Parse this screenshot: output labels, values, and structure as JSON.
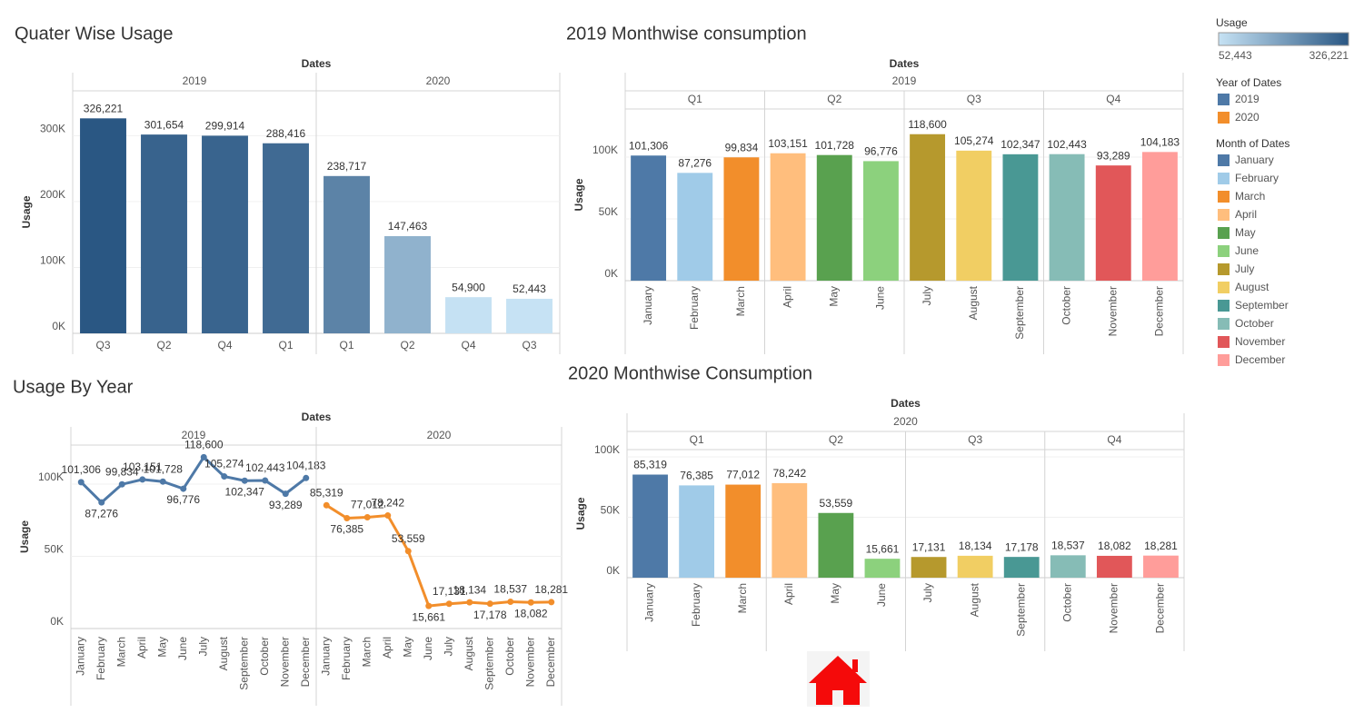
{
  "chart_data": [
    {
      "type": "bar",
      "title": "Quater Wise Usage",
      "x_label": "Dates",
      "y_label": "Usage",
      "color_by": "usage",
      "groups": [
        {
          "name": "2019",
          "categories": [
            "Q3",
            "Q2",
            "Q4",
            "Q1"
          ],
          "values": [
            326221,
            301654,
            299914,
            288416
          ],
          "value_labels": [
            "326,221",
            "301,654",
            "299,914",
            "288,416"
          ]
        },
        {
          "name": "2020",
          "categories": [
            "Q1",
            "Q2",
            "Q4",
            "Q3"
          ],
          "values": [
            238717,
            147463,
            54900,
            52443
          ],
          "value_labels": [
            "238,717",
            "147,463",
            "54,900",
            "52,443"
          ]
        }
      ],
      "ylim": [
        0,
        368000
      ],
      "yticks": [
        {
          "value": 0,
          "label": "0K"
        },
        {
          "value": 100000,
          "label": "100K"
        },
        {
          "value": 200000,
          "label": "200K"
        },
        {
          "value": 300000,
          "label": "300K"
        }
      ],
      "grid": true
    },
    {
      "type": "line",
      "title": "Usage By Year",
      "x_label": "Dates",
      "y_label": "Usage",
      "color_by": "year",
      "groups": [
        {
          "name": "2019",
          "categories": [
            "January",
            "February",
            "March",
            "April",
            "May",
            "June",
            "July",
            "August",
            "September",
            "October",
            "November",
            "December"
          ],
          "values": [
            101306,
            87276,
            99834,
            103151,
            101728,
            96776,
            118600,
            105274,
            102347,
            102443,
            93289,
            104183
          ],
          "value_labels": [
            "101,306",
            "87,276",
            "99,834",
            "103,151",
            "101,728",
            "96,776",
            "118,600",
            "105,274",
            "102,347",
            "102,443",
            "93,289",
            "104,183"
          ]
        },
        {
          "name": "2020",
          "categories": [
            "January",
            "February",
            "March",
            "April",
            "May",
            "June",
            "July",
            "August",
            "September",
            "October",
            "November",
            "December"
          ],
          "values": [
            85319,
            76385,
            77012,
            78242,
            53559,
            15661,
            17131,
            18134,
            17178,
            18537,
            18082,
            18281
          ],
          "value_labels": [
            "85,319",
            "76,385",
            "77,012",
            "78,242",
            "53,559",
            "15,661",
            "17,131",
            "18,134",
            "17,178",
            "18,537",
            "18,082",
            "18,281"
          ]
        }
      ],
      "ylim": [
        0,
        127000
      ],
      "yticks": [
        {
          "value": 0,
          "label": "0K"
        },
        {
          "value": 50000,
          "label": "50K"
        },
        {
          "value": 100000,
          "label": "100K"
        }
      ],
      "grid": true
    },
    {
      "type": "bar",
      "title": "2019 Monthwise consumption",
      "x_label": "Dates",
      "y_label": "Usage",
      "header": "2019",
      "color_by": "month",
      "groups": [
        {
          "name": "Q1",
          "categories": [
            "January",
            "February",
            "March"
          ],
          "values": [
            101306,
            87276,
            99834
          ],
          "value_labels": [
            "101,306",
            "87,276",
            "99,834"
          ]
        },
        {
          "name": "Q2",
          "categories": [
            "April",
            "May",
            "June"
          ],
          "values": [
            103151,
            101728,
            96776
          ],
          "value_labels": [
            "103,151",
            "101,728",
            "96,776"
          ]
        },
        {
          "name": "Q3",
          "categories": [
            "July",
            "August",
            "September"
          ],
          "values": [
            118600,
            105274,
            102347
          ],
          "value_labels": [
            "118,600",
            "105,274",
            "102,347"
          ]
        },
        {
          "name": "Q4",
          "categories": [
            "October",
            "November",
            "December"
          ],
          "values": [
            102443,
            93289,
            104183
          ],
          "value_labels": [
            "102,443",
            "93,289",
            "104,183"
          ]
        }
      ],
      "ylim": [
        0,
        139000
      ],
      "yticks": [
        {
          "value": 0,
          "label": "0K"
        },
        {
          "value": 50000,
          "label": "50K"
        },
        {
          "value": 100000,
          "label": "100K"
        }
      ],
      "grid": true
    },
    {
      "type": "bar",
      "title": "2020 Monthwise Consumption",
      "x_label": "Dates",
      "y_label": "Usage",
      "header": "2020",
      "color_by": "month",
      "groups": [
        {
          "name": "Q1",
          "categories": [
            "January",
            "February",
            "March"
          ],
          "values": [
            85319,
            76385,
            77012
          ],
          "value_labels": [
            "85,319",
            "76,385",
            "77,012"
          ]
        },
        {
          "name": "Q2",
          "categories": [
            "April",
            "May",
            "June"
          ],
          "values": [
            78242,
            53559,
            15661
          ],
          "value_labels": [
            "78,242",
            "53,559",
            "15,661"
          ]
        },
        {
          "name": "Q3",
          "categories": [
            "July",
            "August",
            "September"
          ],
          "values": [
            17131,
            18134,
            17178
          ],
          "value_labels": [
            "17,131",
            "18,134",
            "17,178"
          ]
        },
        {
          "name": "Q4",
          "categories": [
            "October",
            "November",
            "December"
          ],
          "values": [
            18537,
            18082,
            18281
          ],
          "value_labels": [
            "18,537",
            "18,082",
            "18,281"
          ]
        }
      ],
      "ylim": [
        0,
        106000
      ],
      "yticks": [
        {
          "value": 0,
          "label": "0K"
        },
        {
          "value": 50000,
          "label": "50K"
        },
        {
          "value": 100000,
          "label": "100K"
        }
      ],
      "grid": true
    }
  ],
  "legends": {
    "usage": {
      "title": "Usage",
      "colors": [
        "#c6e2f4",
        "#2a5783"
      ],
      "ticks": [
        {
          "value": 52443,
          "label": "52,443"
        },
        {
          "value": 326221,
          "label": "326,221"
        }
      ]
    },
    "year": {
      "title": "Year of Dates",
      "items": [
        {
          "name": "2019",
          "color": "#4e79a7"
        },
        {
          "name": "2020",
          "color": "#f28e2b"
        }
      ]
    },
    "month": {
      "title": "Month of Dates",
      "items": [
        {
          "name": "January",
          "color": "#4e79a7"
        },
        {
          "name": "February",
          "color": "#a0cbe8"
        },
        {
          "name": "March",
          "color": "#f28e2b"
        },
        {
          "name": "April",
          "color": "#ffbe7d"
        },
        {
          "name": "May",
          "color": "#59a14f"
        },
        {
          "name": "June",
          "color": "#8cd17d"
        },
        {
          "name": "July",
          "color": "#b6992d"
        },
        {
          "name": "August",
          "color": "#f1ce63"
        },
        {
          "name": "September",
          "color": "#499894"
        },
        {
          "name": "October",
          "color": "#86bcb6"
        },
        {
          "name": "November",
          "color": "#e15759"
        },
        {
          "name": "December",
          "color": "#ff9d9a"
        }
      ]
    }
  }
}
